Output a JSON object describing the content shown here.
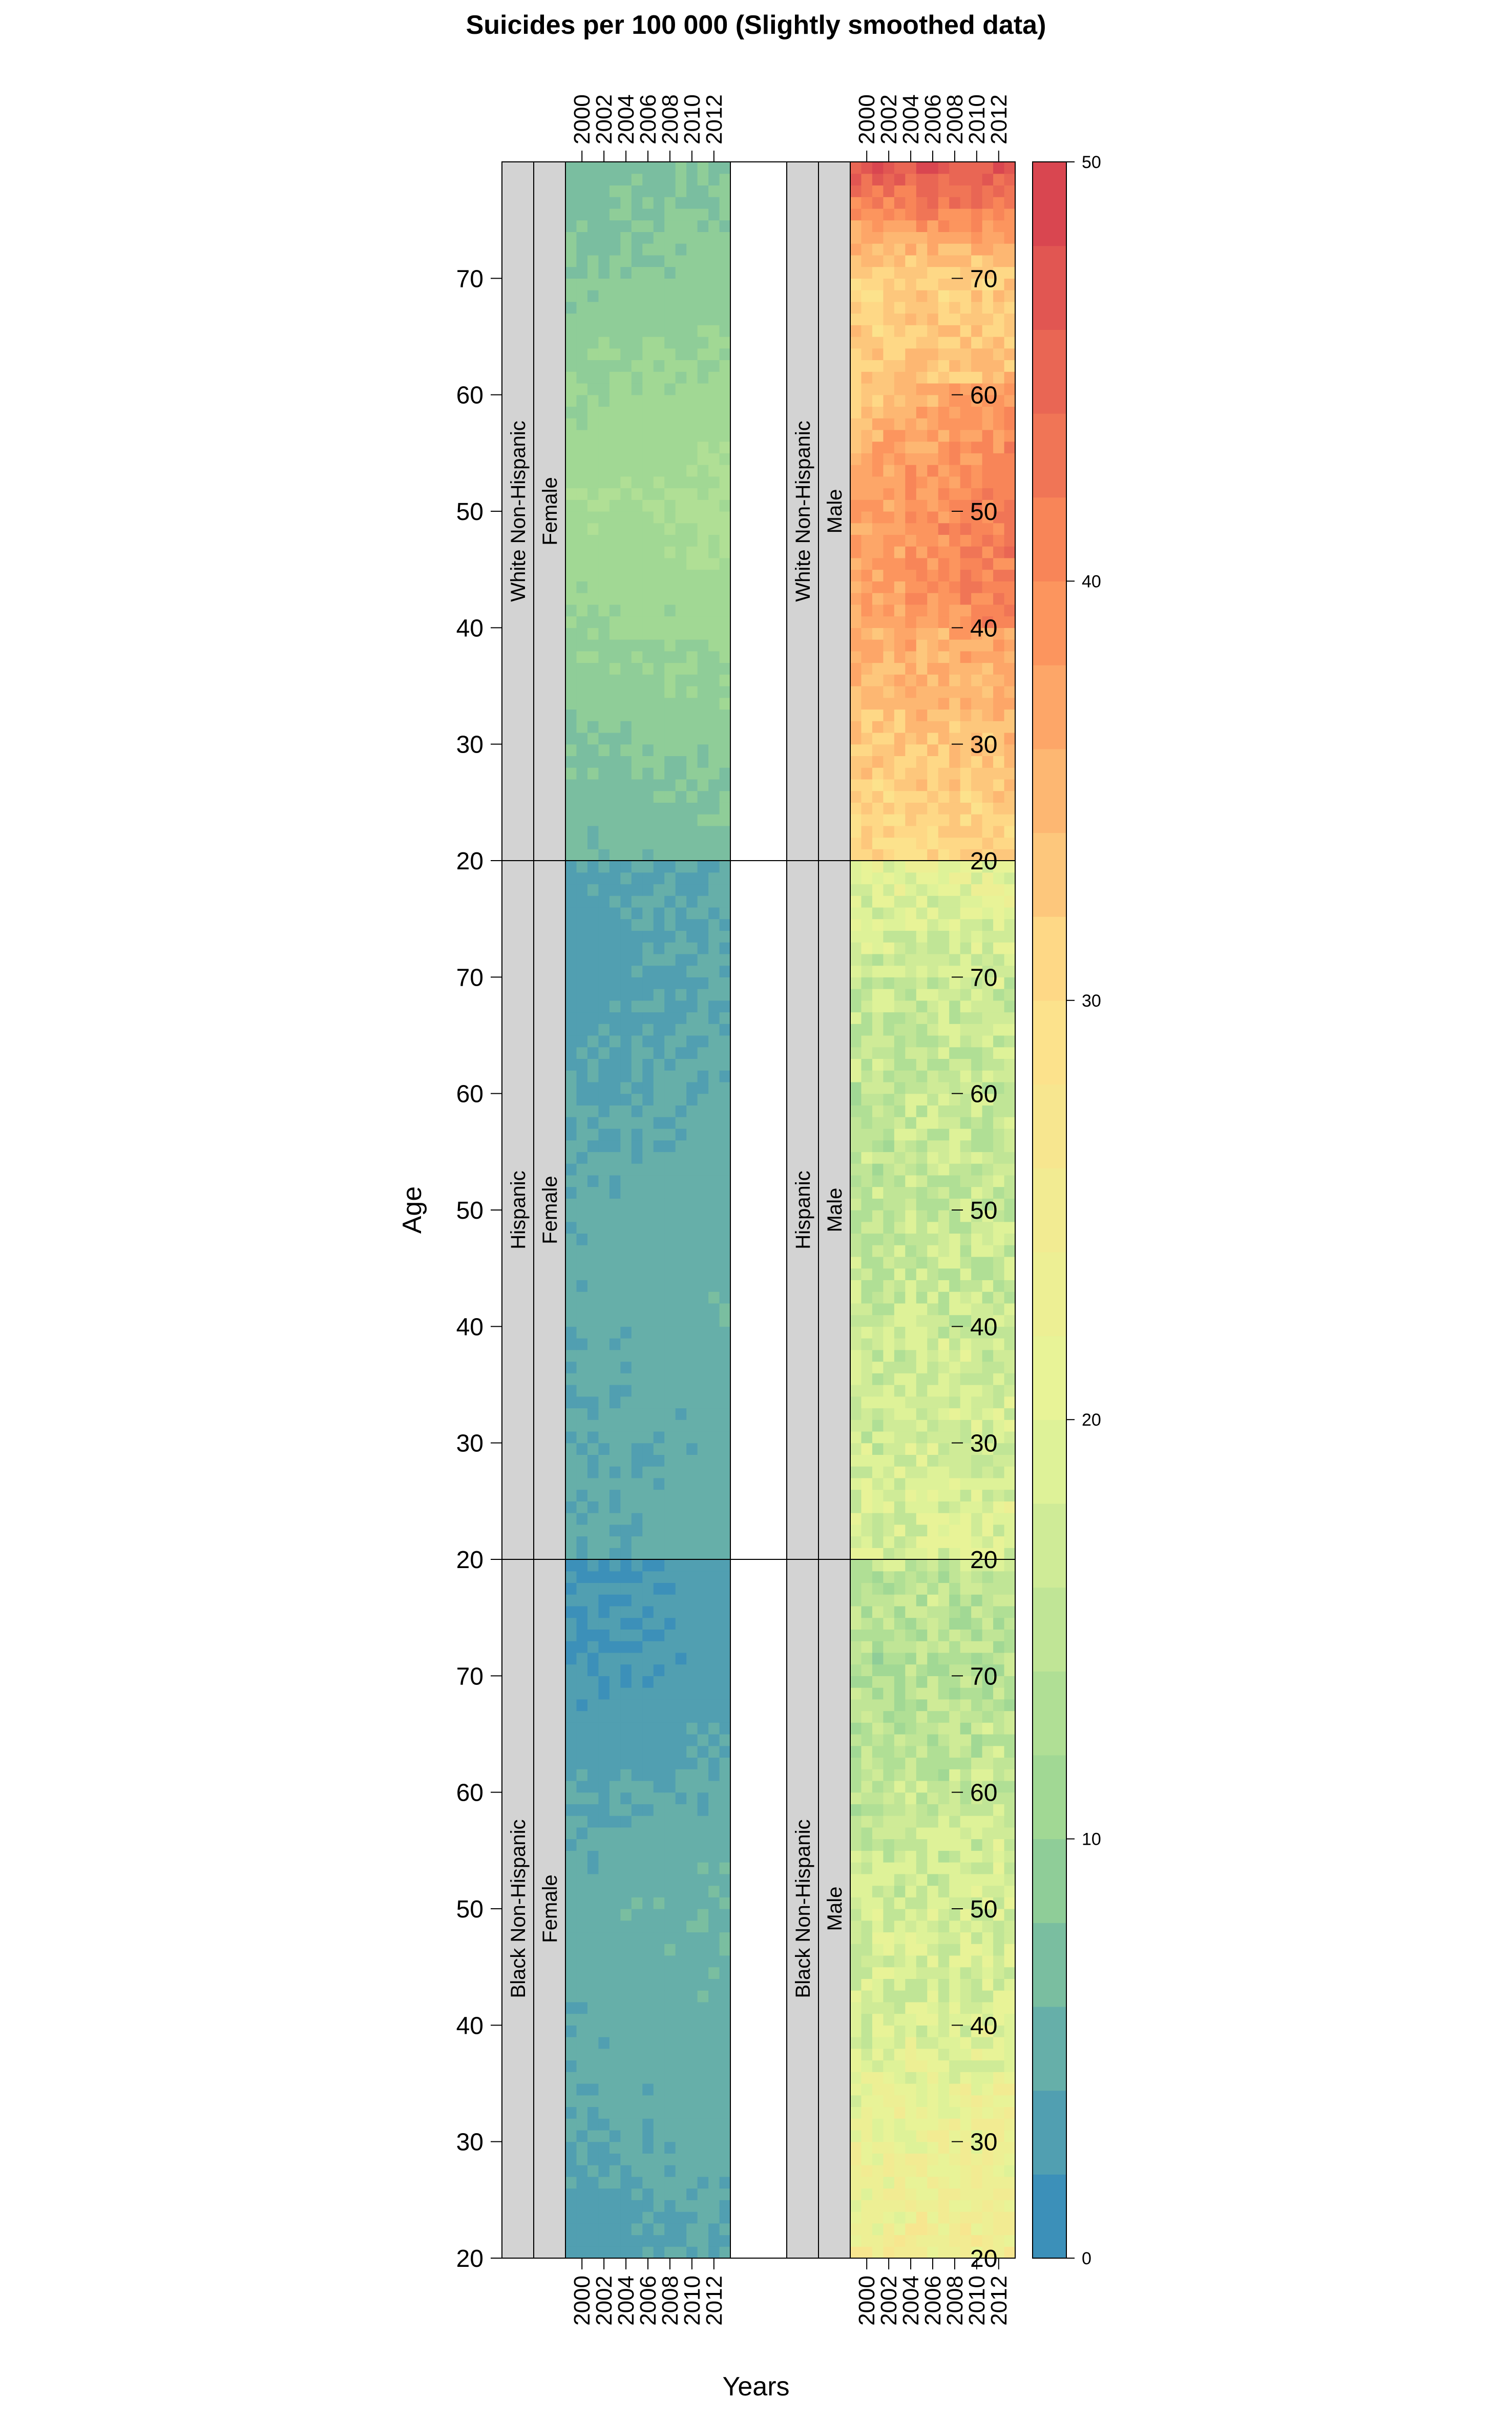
{
  "chart_data": {
    "type": "heatmap",
    "title": "Suicides per 100 000 (Slightly smoothed data)",
    "xlabel": "Years",
    "ylabel": "Age",
    "x_ticks": [
      "2000",
      "2002",
      "2004",
      "2006",
      "2008",
      "2010",
      "2012"
    ],
    "y_ticks": [
      "20",
      "30",
      "40",
      "50",
      "60",
      "70"
    ],
    "years": {
      "start": 1999,
      "end": 2013
    },
    "ages": {
      "start": 20,
      "end": 79
    },
    "colorbar": {
      "ticks": [
        "0",
        "10",
        "20",
        "30",
        "40",
        "50"
      ],
      "range": [
        0,
        50
      ],
      "levels": 25,
      "colors": [
        "#3288bd",
        "#99d594",
        "#e6f598",
        "#fee08b",
        "#fc8d59",
        "#d53e4f"
      ]
    },
    "rows": [
      {
        "race": "Black Non-Hispanic",
        "panels": [
          {
            "sex": "Female",
            "value_by_age": [
              [
                20,
                3.0
              ],
              [
                30,
                4.0
              ],
              [
                40,
                4.5
              ],
              [
                50,
                5.0
              ],
              [
                60,
                3.5
              ],
              [
                70,
                2.0
              ],
              [
                79,
                2.0
              ]
            ]
          },
          {
            "sex": "Male",
            "value_by_age": [
              [
                20,
                23.0
              ],
              [
                30,
                22.0
              ],
              [
                40,
                18.0
              ],
              [
                50,
                17.0
              ],
              [
                60,
                15.0
              ],
              [
                70,
                13.0
              ],
              [
                79,
                15.0
              ]
            ]
          }
        ]
      },
      {
        "race": "Hispanic",
        "panels": [
          {
            "sex": "Female",
            "value_by_age": [
              [
                20,
                4.0
              ],
              [
                30,
                4.0
              ],
              [
                40,
                4.5
              ],
              [
                50,
                4.5
              ],
              [
                60,
                3.5
              ],
              [
                70,
                3.0
              ],
              [
                79,
                3.5
              ]
            ]
          },
          {
            "sex": "Male",
            "value_by_age": [
              [
                20,
                18.0
              ],
              [
                30,
                17.0
              ],
              [
                40,
                16.0
              ],
              [
                50,
                15.0
              ],
              [
                60,
                15.0
              ],
              [
                70,
                16.0
              ],
              [
                79,
                20.0
              ]
            ]
          }
        ]
      },
      {
        "race": "White Non-Hispanic",
        "panels": [
          {
            "sex": "Female",
            "value_by_age": [
              [
                20,
                6.0
              ],
              [
                30,
                8.0
              ],
              [
                40,
                10.0
              ],
              [
                50,
                11.5
              ],
              [
                60,
                10.0
              ],
              [
                70,
                8.0
              ],
              [
                79,
                7.0
              ]
            ]
          },
          {
            "sex": "Male",
            "value_by_age": [
              [
                20,
                30.0
              ],
              [
                30,
                33.0
              ],
              [
                40,
                36.0
              ],
              [
                50,
                37.0
              ],
              [
                60,
                33.0
              ],
              [
                70,
                31.0
              ],
              [
                75,
                40.0
              ],
              [
                79,
                46.0
              ]
            ]
          }
        ]
      }
    ]
  }
}
